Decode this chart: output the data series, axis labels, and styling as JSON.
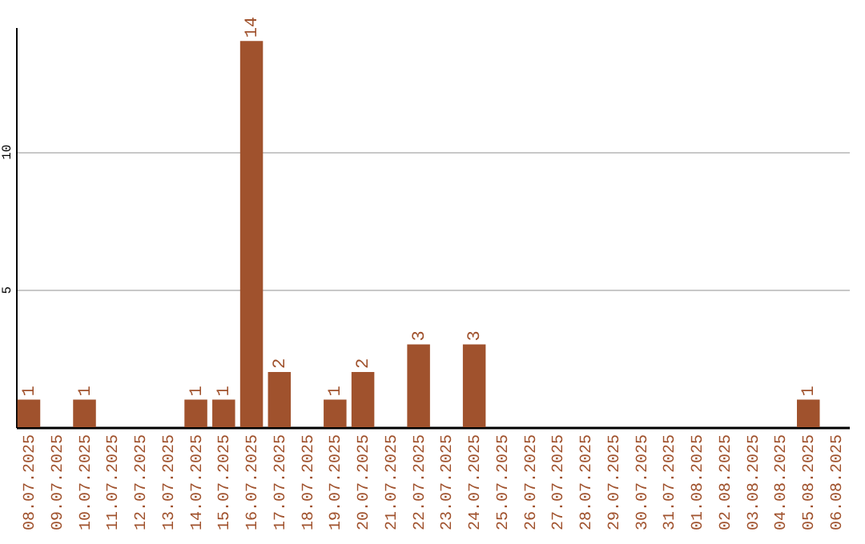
{
  "chart_data": {
    "type": "bar",
    "categories": [
      "08.07.2025",
      "09.07.2025",
      "10.07.2025",
      "11.07.2025",
      "12.07.2025",
      "13.07.2025",
      "14.07.2025",
      "15.07.2025",
      "16.07.2025",
      "17.07.2025",
      "18.07.2025",
      "19.07.2025",
      "20.07.2025",
      "21.07.2025",
      "22.07.2025",
      "23.07.2025",
      "24.07.2025",
      "25.07.2025",
      "26.07.2025",
      "27.07.2025",
      "28.07.2025",
      "29.07.2025",
      "30.07.2025",
      "31.07.2025",
      "01.08.2025",
      "02.08.2025",
      "03.08.2025",
      "04.08.2025",
      "05.08.2025",
      "06.08.2025"
    ],
    "values": [
      1,
      0,
      1,
      0,
      0,
      0,
      1,
      1,
      14,
      2,
      0,
      1,
      2,
      0,
      3,
      0,
      3,
      0,
      0,
      0,
      0,
      0,
      0,
      0,
      0,
      0,
      0,
      0,
      1,
      0
    ],
    "value_labels": [
      "1",
      null,
      "1",
      null,
      null,
      null,
      "1",
      "1",
      "14",
      "2",
      null,
      "1",
      "2",
      null,
      "3",
      null,
      "3",
      null,
      null,
      null,
      null,
      null,
      null,
      null,
      null,
      null,
      null,
      null,
      "1",
      null
    ],
    "color": "#a0522d",
    "ylim": [
      0,
      14.5
    ],
    "yticks": [
      5,
      10
    ],
    "grid": "y"
  }
}
